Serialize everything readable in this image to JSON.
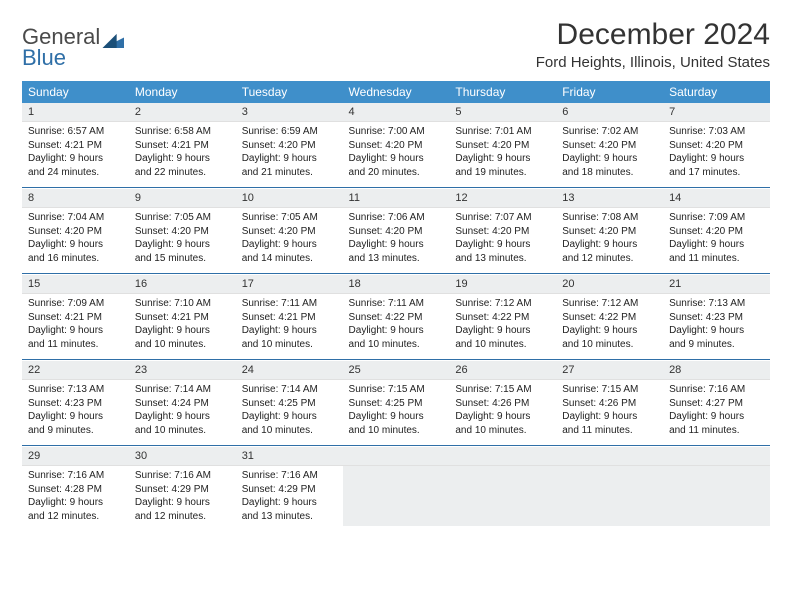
{
  "logo": {
    "text1": "General",
    "text2": "Blue"
  },
  "title": "December 2024",
  "subtitle": "Ford Heights, Illinois, United States",
  "colors": {
    "header_bg": "#3f8fca",
    "header_text": "#ffffff",
    "daynum_bg": "#eceeef",
    "rule": "#2f6fa7",
    "logo_gray": "#4a4a4a",
    "logo_blue": "#2f6fa7",
    "body_text": "#222222",
    "page_bg": "#ffffff"
  },
  "weekday_labels": [
    "Sunday",
    "Monday",
    "Tuesday",
    "Wednesday",
    "Thursday",
    "Friday",
    "Saturday"
  ],
  "weeks": [
    [
      {
        "n": "1",
        "sr": "Sunrise: 6:57 AM",
        "ss": "Sunset: 4:21 PM",
        "d1": "Daylight: 9 hours",
        "d2": "and 24 minutes."
      },
      {
        "n": "2",
        "sr": "Sunrise: 6:58 AM",
        "ss": "Sunset: 4:21 PM",
        "d1": "Daylight: 9 hours",
        "d2": "and 22 minutes."
      },
      {
        "n": "3",
        "sr": "Sunrise: 6:59 AM",
        "ss": "Sunset: 4:20 PM",
        "d1": "Daylight: 9 hours",
        "d2": "and 21 minutes."
      },
      {
        "n": "4",
        "sr": "Sunrise: 7:00 AM",
        "ss": "Sunset: 4:20 PM",
        "d1": "Daylight: 9 hours",
        "d2": "and 20 minutes."
      },
      {
        "n": "5",
        "sr": "Sunrise: 7:01 AM",
        "ss": "Sunset: 4:20 PM",
        "d1": "Daylight: 9 hours",
        "d2": "and 19 minutes."
      },
      {
        "n": "6",
        "sr": "Sunrise: 7:02 AM",
        "ss": "Sunset: 4:20 PM",
        "d1": "Daylight: 9 hours",
        "d2": "and 18 minutes."
      },
      {
        "n": "7",
        "sr": "Sunrise: 7:03 AM",
        "ss": "Sunset: 4:20 PM",
        "d1": "Daylight: 9 hours",
        "d2": "and 17 minutes."
      }
    ],
    [
      {
        "n": "8",
        "sr": "Sunrise: 7:04 AM",
        "ss": "Sunset: 4:20 PM",
        "d1": "Daylight: 9 hours",
        "d2": "and 16 minutes."
      },
      {
        "n": "9",
        "sr": "Sunrise: 7:05 AM",
        "ss": "Sunset: 4:20 PM",
        "d1": "Daylight: 9 hours",
        "d2": "and 15 minutes."
      },
      {
        "n": "10",
        "sr": "Sunrise: 7:05 AM",
        "ss": "Sunset: 4:20 PM",
        "d1": "Daylight: 9 hours",
        "d2": "and 14 minutes."
      },
      {
        "n": "11",
        "sr": "Sunrise: 7:06 AM",
        "ss": "Sunset: 4:20 PM",
        "d1": "Daylight: 9 hours",
        "d2": "and 13 minutes."
      },
      {
        "n": "12",
        "sr": "Sunrise: 7:07 AM",
        "ss": "Sunset: 4:20 PM",
        "d1": "Daylight: 9 hours",
        "d2": "and 13 minutes."
      },
      {
        "n": "13",
        "sr": "Sunrise: 7:08 AM",
        "ss": "Sunset: 4:20 PM",
        "d1": "Daylight: 9 hours",
        "d2": "and 12 minutes."
      },
      {
        "n": "14",
        "sr": "Sunrise: 7:09 AM",
        "ss": "Sunset: 4:20 PM",
        "d1": "Daylight: 9 hours",
        "d2": "and 11 minutes."
      }
    ],
    [
      {
        "n": "15",
        "sr": "Sunrise: 7:09 AM",
        "ss": "Sunset: 4:21 PM",
        "d1": "Daylight: 9 hours",
        "d2": "and 11 minutes."
      },
      {
        "n": "16",
        "sr": "Sunrise: 7:10 AM",
        "ss": "Sunset: 4:21 PM",
        "d1": "Daylight: 9 hours",
        "d2": "and 10 minutes."
      },
      {
        "n": "17",
        "sr": "Sunrise: 7:11 AM",
        "ss": "Sunset: 4:21 PM",
        "d1": "Daylight: 9 hours",
        "d2": "and 10 minutes."
      },
      {
        "n": "18",
        "sr": "Sunrise: 7:11 AM",
        "ss": "Sunset: 4:22 PM",
        "d1": "Daylight: 9 hours",
        "d2": "and 10 minutes."
      },
      {
        "n": "19",
        "sr": "Sunrise: 7:12 AM",
        "ss": "Sunset: 4:22 PM",
        "d1": "Daylight: 9 hours",
        "d2": "and 10 minutes."
      },
      {
        "n": "20",
        "sr": "Sunrise: 7:12 AM",
        "ss": "Sunset: 4:22 PM",
        "d1": "Daylight: 9 hours",
        "d2": "and 10 minutes."
      },
      {
        "n": "21",
        "sr": "Sunrise: 7:13 AM",
        "ss": "Sunset: 4:23 PM",
        "d1": "Daylight: 9 hours",
        "d2": "and 9 minutes."
      }
    ],
    [
      {
        "n": "22",
        "sr": "Sunrise: 7:13 AM",
        "ss": "Sunset: 4:23 PM",
        "d1": "Daylight: 9 hours",
        "d2": "and 9 minutes."
      },
      {
        "n": "23",
        "sr": "Sunrise: 7:14 AM",
        "ss": "Sunset: 4:24 PM",
        "d1": "Daylight: 9 hours",
        "d2": "and 10 minutes."
      },
      {
        "n": "24",
        "sr": "Sunrise: 7:14 AM",
        "ss": "Sunset: 4:25 PM",
        "d1": "Daylight: 9 hours",
        "d2": "and 10 minutes."
      },
      {
        "n": "25",
        "sr": "Sunrise: 7:15 AM",
        "ss": "Sunset: 4:25 PM",
        "d1": "Daylight: 9 hours",
        "d2": "and 10 minutes."
      },
      {
        "n": "26",
        "sr": "Sunrise: 7:15 AM",
        "ss": "Sunset: 4:26 PM",
        "d1": "Daylight: 9 hours",
        "d2": "and 10 minutes."
      },
      {
        "n": "27",
        "sr": "Sunrise: 7:15 AM",
        "ss": "Sunset: 4:26 PM",
        "d1": "Daylight: 9 hours",
        "d2": "and 11 minutes."
      },
      {
        "n": "28",
        "sr": "Sunrise: 7:16 AM",
        "ss": "Sunset: 4:27 PM",
        "d1": "Daylight: 9 hours",
        "d2": "and 11 minutes."
      }
    ],
    [
      {
        "n": "29",
        "sr": "Sunrise: 7:16 AM",
        "ss": "Sunset: 4:28 PM",
        "d1": "Daylight: 9 hours",
        "d2": "and 12 minutes."
      },
      {
        "n": "30",
        "sr": "Sunrise: 7:16 AM",
        "ss": "Sunset: 4:29 PM",
        "d1": "Daylight: 9 hours",
        "d2": "and 12 minutes."
      },
      {
        "n": "31",
        "sr": "Sunrise: 7:16 AM",
        "ss": "Sunset: 4:29 PM",
        "d1": "Daylight: 9 hours",
        "d2": "and 13 minutes."
      },
      {
        "empty": true
      },
      {
        "empty": true
      },
      {
        "empty": true
      },
      {
        "empty": true
      }
    ]
  ]
}
